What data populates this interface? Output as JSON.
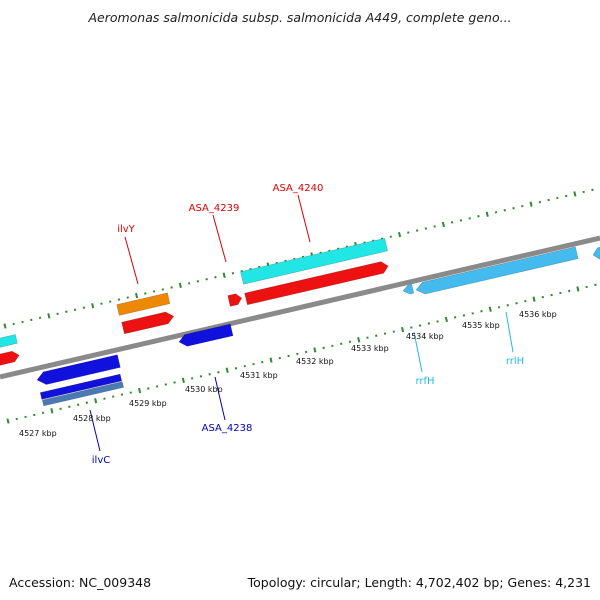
{
  "title": "Aeromonas salmonicida subsp. salmonicida A449, complete geno...",
  "footer": {
    "accession": "Accession: NC_009348",
    "topology": "Topology: circular; Length: 4,702,402 bp; Genes: 4,231"
  },
  "colors": {
    "backbone": "#8a8a8a",
    "tick_marks": "#2e8b2e",
    "gene_red": "#ee1111",
    "gene_orange": "#ee8800",
    "gene_cyan": "#22e6e6",
    "gene_blue": "#1111dd",
    "gene_steelblue": "#4a7ab4",
    "gene_lightblue": "#44bbee",
    "label_red": "#dd0000",
    "label_blue": "#0000bb",
    "label_cyan": "#22bbdd"
  },
  "scale": {
    "unit": "kbp",
    "ticks": [
      {
        "kbp": 4527,
        "label": "4527 kbp"
      },
      {
        "kbp": 4528,
        "label": "4528 kbp"
      },
      {
        "kbp": 4529,
        "label": "4529 kbp"
      },
      {
        "kbp": 4530,
        "label": "4530 kbp"
      },
      {
        "kbp": 4531,
        "label": "4531 kbp"
      },
      {
        "kbp": 4532,
        "label": "4532 kbp"
      },
      {
        "kbp": 4533,
        "label": "4533 kbp"
      },
      {
        "kbp": 4534,
        "label": "4534 kbp"
      },
      {
        "kbp": 4535,
        "label": "4535 kbp"
      },
      {
        "kbp": 4536,
        "label": "4536 kbp"
      }
    ]
  },
  "gene_labels": [
    {
      "name": "ilvY",
      "color": "label_red"
    },
    {
      "name": "ASA_4239",
      "color": "label_red"
    },
    {
      "name": "ASA_4240",
      "color": "label_red"
    },
    {
      "name": "ilvC",
      "color": "label_blue"
    },
    {
      "name": "ASA_4238",
      "color": "label_blue"
    },
    {
      "name": "rrfH",
      "color": "label_cyan"
    },
    {
      "name": "rrlH",
      "color": "label_cyan"
    }
  ]
}
